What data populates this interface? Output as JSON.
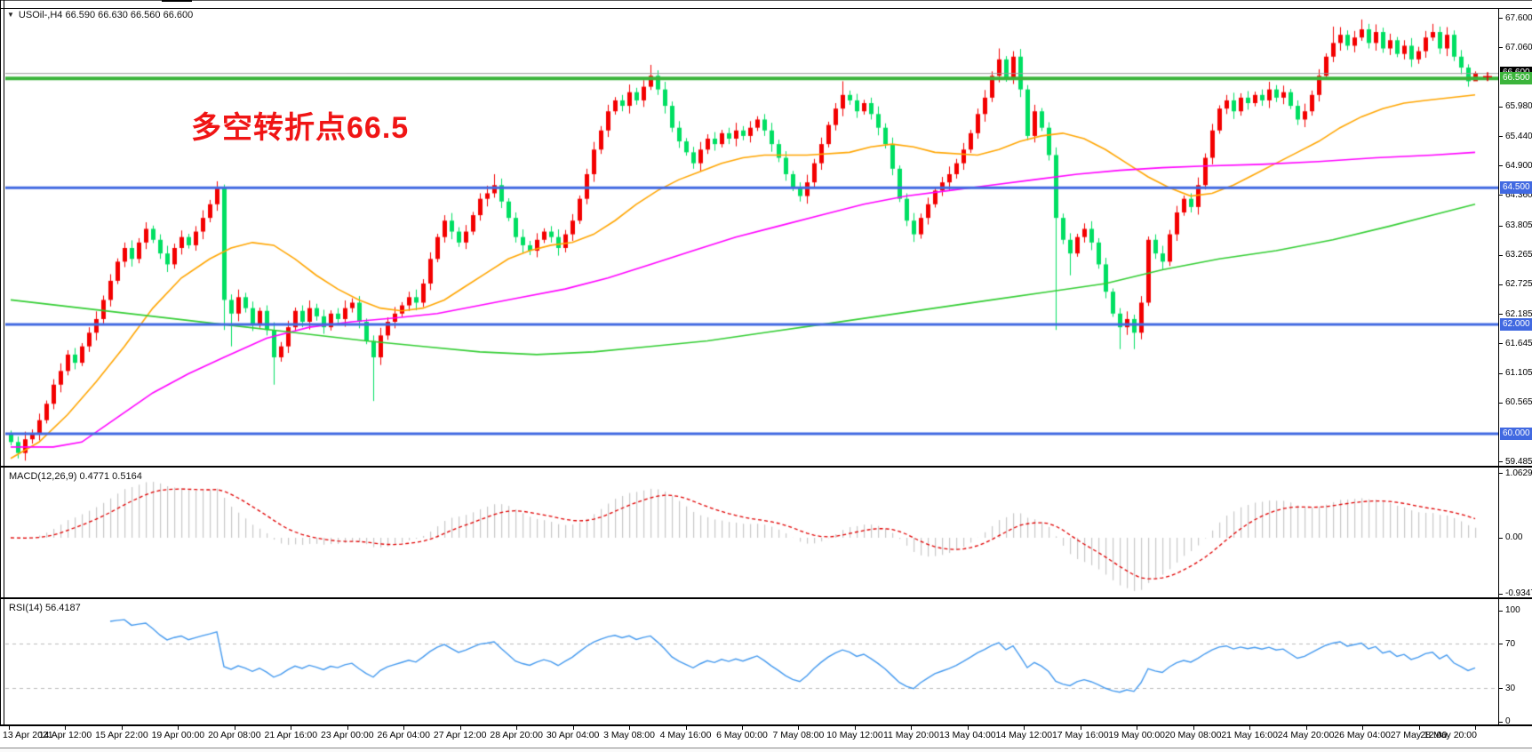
{
  "window": {
    "symbol_line": "USOil-,H4  66.590 66.630 66.560 66.600",
    "dropdown_icon": "▼"
  },
  "annotation": {
    "text": "多空转折点66.5",
    "color": "#f01515"
  },
  "panes": {
    "macd_label": "MACD(12,26,9) 0.4771 0.5164",
    "rsi_label": "RSI(14) 56.4187"
  },
  "chart_data": {
    "type": "candlestick",
    "symbol": "USOil-",
    "timeframe": "H4",
    "current_ohlc": {
      "open": 66.59,
      "high": 66.63,
      "low": 66.56,
      "close": 66.6
    },
    "price_axis": {
      "min": 59.4,
      "max": 67.79,
      "ticks": [
        67.6,
        67.06,
        65.98,
        65.44,
        64.9,
        64.36,
        63.805,
        63.265,
        62.725,
        62.185,
        61.645,
        61.105,
        60.565,
        59.485
      ]
    },
    "hlines": [
      {
        "price": 66.5,
        "label": "66.500",
        "color": "#3bb43b",
        "width": 4
      },
      {
        "price": 64.5,
        "label": "64.500",
        "color": "#4169e1",
        "width": 3
      },
      {
        "price": 62.0,
        "label": "62.000",
        "color": "#4169e1",
        "width": 3
      },
      {
        "price": 60.0,
        "label": "60.000",
        "color": "#4169e1",
        "width": 3
      }
    ],
    "current_price": {
      "value": 66.6,
      "label": "66.600",
      "line_color": "#9a9a9a",
      "box_color": "#000000",
      "marker_color": "#e00000"
    },
    "candles": {
      "up_color": "#f30000",
      "down_color": "#00df62",
      "first_open": 60.0,
      "closes": [
        59.85,
        59.65,
        59.9,
        60.0,
        60.25,
        60.55,
        60.9,
        61.15,
        61.45,
        61.3,
        61.6,
        61.85,
        62.1,
        62.45,
        62.8,
        63.15,
        63.4,
        63.2,
        63.5,
        63.75,
        63.55,
        63.3,
        63.1,
        63.4,
        63.6,
        63.45,
        63.7,
        63.95,
        64.2,
        64.5,
        62.45,
        62.2,
        62.5,
        62.3,
        62.0,
        62.25,
        61.9,
        61.4,
        61.6,
        61.95,
        62.25,
        62.05,
        62.3,
        62.15,
        61.95,
        62.2,
        62.1,
        62.3,
        62.4,
        62.05,
        61.7,
        61.4,
        61.8,
        62.05,
        62.2,
        62.35,
        62.5,
        62.4,
        62.75,
        63.2,
        63.6,
        63.9,
        63.7,
        63.5,
        63.7,
        64.0,
        64.3,
        64.4,
        64.55,
        64.25,
        63.95,
        63.6,
        63.45,
        63.35,
        63.55,
        63.7,
        63.6,
        63.4,
        63.65,
        63.9,
        64.3,
        64.75,
        65.2,
        65.55,
        65.9,
        66.1,
        66.0,
        66.25,
        66.1,
        66.35,
        66.55,
        66.3,
        66.0,
        65.6,
        65.35,
        65.15,
        64.95,
        65.2,
        65.4,
        65.3,
        65.5,
        65.4,
        65.55,
        65.45,
        65.6,
        65.75,
        65.55,
        65.3,
        65.05,
        64.75,
        64.5,
        64.35,
        64.6,
        64.95,
        65.3,
        65.65,
        65.95,
        66.2,
        66.1,
        65.9,
        66.05,
        65.85,
        65.6,
        65.3,
        64.85,
        64.3,
        63.9,
        63.65,
        63.95,
        64.2,
        64.45,
        64.6,
        64.75,
        64.95,
        65.2,
        65.5,
        65.85,
        66.15,
        66.55,
        66.85,
        66.5,
        66.9,
        66.3,
        65.45,
        65.9,
        65.6,
        65.1,
        63.95,
        63.55,
        63.3,
        63.6,
        63.75,
        63.5,
        63.1,
        62.6,
        62.2,
        61.95,
        62.1,
        61.85,
        62.4,
        63.55,
        63.3,
        63.15,
        63.65,
        64.05,
        64.3,
        64.15,
        64.55,
        65.05,
        65.55,
        65.95,
        66.1,
        65.9,
        66.15,
        66.05,
        66.2,
        66.1,
        66.3,
        66.15,
        66.25,
        66.0,
        65.75,
        65.9,
        66.2,
        66.55,
        66.9,
        67.15,
        67.3,
        67.1,
        67.25,
        67.4,
        67.15,
        67.35,
        67.05,
        67.2,
        66.95,
        67.1,
        66.85,
        67.0,
        67.25,
        67.35,
        67.05,
        67.3,
        66.9,
        66.7,
        66.45,
        66.6
      ],
      "wick_overrides": {
        "30": {
          "low": 61.9
        },
        "31": {
          "low": 61.6
        },
        "37": {
          "low": 60.9
        },
        "51": {
          "low": 60.6
        },
        "68": {
          "high": 64.75
        },
        "90": {
          "high": 66.75
        },
        "117": {
          "high": 66.45
        },
        "139": {
          "high": 67.05
        },
        "141": {
          "high": 67.0
        },
        "147": {
          "low": 61.9
        },
        "149": {
          "low": 62.9
        },
        "156": {
          "low": 61.55
        },
        "158": {
          "low": 61.55
        },
        "186": {
          "high": 67.45
        },
        "190": {
          "high": 67.58
        },
        "200": {
          "high": 67.5
        },
        "205": {
          "low": 66.35
        },
        "206": {
          "high": 66.63,
          "low": 66.56
        }
      }
    },
    "moving_averages": [
      {
        "name": "ma-orange",
        "color": "#ffa500",
        "points": [
          [
            0,
            59.55
          ],
          [
            4,
            59.85
          ],
          [
            8,
            60.35
          ],
          [
            12,
            60.95
          ],
          [
            16,
            61.6
          ],
          [
            20,
            62.3
          ],
          [
            24,
            62.85
          ],
          [
            28,
            63.2
          ],
          [
            31,
            63.4
          ],
          [
            34,
            63.5
          ],
          [
            37,
            63.45
          ],
          [
            40,
            63.2
          ],
          [
            43,
            62.9
          ],
          [
            46,
            62.65
          ],
          [
            49,
            62.45
          ],
          [
            52,
            62.3
          ],
          [
            55,
            62.25
          ],
          [
            58,
            62.3
          ],
          [
            61,
            62.45
          ],
          [
            64,
            62.7
          ],
          [
            67,
            62.95
          ],
          [
            70,
            63.2
          ],
          [
            73,
            63.35
          ],
          [
            76,
            63.45
          ],
          [
            79,
            63.5
          ],
          [
            82,
            63.65
          ],
          [
            85,
            63.9
          ],
          [
            88,
            64.2
          ],
          [
            91,
            64.45
          ],
          [
            94,
            64.65
          ],
          [
            97,
            64.8
          ],
          [
            100,
            64.95
          ],
          [
            103,
            65.05
          ],
          [
            106,
            65.1
          ],
          [
            112,
            65.1
          ],
          [
            118,
            65.15
          ],
          [
            121,
            65.25
          ],
          [
            124,
            65.3
          ],
          [
            127,
            65.25
          ],
          [
            130,
            65.15
          ],
          [
            136,
            65.1
          ],
          [
            139,
            65.2
          ],
          [
            142,
            65.35
          ],
          [
            145,
            65.45
          ],
          [
            148,
            65.5
          ],
          [
            151,
            65.4
          ],
          [
            154,
            65.2
          ],
          [
            157,
            64.95
          ],
          [
            160,
            64.7
          ],
          [
            163,
            64.5
          ],
          [
            166,
            64.35
          ],
          [
            169,
            64.4
          ],
          [
            172,
            64.55
          ],
          [
            175,
            64.75
          ],
          [
            178,
            64.95
          ],
          [
            181,
            65.15
          ],
          [
            184,
            65.35
          ],
          [
            187,
            65.6
          ],
          [
            190,
            65.8
          ],
          [
            193,
            65.95
          ],
          [
            196,
            66.05
          ],
          [
            199,
            66.1
          ],
          [
            206,
            66.2
          ]
        ]
      },
      {
        "name": "ma-magenta",
        "color": "#ff00ff",
        "points": [
          [
            0,
            59.76
          ],
          [
            6,
            59.76
          ],
          [
            10,
            59.85
          ],
          [
            15,
            60.3
          ],
          [
            20,
            60.75
          ],
          [
            25,
            61.1
          ],
          [
            30,
            61.4
          ],
          [
            36,
            61.75
          ],
          [
            42,
            61.95
          ],
          [
            48,
            62.05
          ],
          [
            54,
            62.12
          ],
          [
            60,
            62.2
          ],
          [
            66,
            62.35
          ],
          [
            72,
            62.5
          ],
          [
            78,
            62.65
          ],
          [
            84,
            62.85
          ],
          [
            90,
            63.1
          ],
          [
            96,
            63.35
          ],
          [
            102,
            63.6
          ],
          [
            108,
            63.8
          ],
          [
            114,
            64.0
          ],
          [
            120,
            64.2
          ],
          [
            126,
            64.35
          ],
          [
            132,
            64.45
          ],
          [
            138,
            64.55
          ],
          [
            144,
            64.65
          ],
          [
            150,
            64.75
          ],
          [
            156,
            64.82
          ],
          [
            162,
            64.87
          ],
          [
            168,
            64.9
          ],
          [
            176,
            64.93
          ],
          [
            184,
            64.98
          ],
          [
            192,
            65.05
          ],
          [
            200,
            65.1
          ],
          [
            206,
            65.15
          ]
        ]
      },
      {
        "name": "ma-green",
        "color": "#32cd32",
        "points": [
          [
            0,
            62.45
          ],
          [
            10,
            62.3
          ],
          [
            20,
            62.15
          ],
          [
            30,
            62.0
          ],
          [
            40,
            61.85
          ],
          [
            50,
            61.7
          ],
          [
            58,
            61.6
          ],
          [
            66,
            61.5
          ],
          [
            74,
            61.45
          ],
          [
            82,
            61.5
          ],
          [
            90,
            61.6
          ],
          [
            98,
            61.7
          ],
          [
            106,
            61.85
          ],
          [
            114,
            62.0
          ],
          [
            122,
            62.15
          ],
          [
            130,
            62.3
          ],
          [
            138,
            62.45
          ],
          [
            146,
            62.6
          ],
          [
            154,
            62.75
          ],
          [
            162,
            63.0
          ],
          [
            170,
            63.2
          ],
          [
            178,
            63.35
          ],
          [
            186,
            63.55
          ],
          [
            194,
            63.8
          ],
          [
            200,
            64.0
          ],
          [
            206,
            64.2
          ]
        ]
      }
    ],
    "macd": {
      "label": "MACD(12,26,9)",
      "main_value": "0.4771",
      "signal_value": "0.5164",
      "params": [
        12,
        26,
        9
      ],
      "axis_ticks": [
        "1.0629",
        "0.00",
        "-0.9347"
      ],
      "axis_tick_values": [
        1.0629,
        0.0,
        -0.9347
      ],
      "histogram_color": "#c8c8c8",
      "signal_color": "#e00000"
    },
    "rsi": {
      "label": "RSI(14)",
      "value": "56.4187",
      "period": 14,
      "axis_ticks": [
        "100",
        "70",
        "30",
        "0"
      ],
      "axis_tick_values": [
        100,
        70,
        30,
        0
      ],
      "levels": [
        70,
        30
      ],
      "color": "#4499ee",
      "level_color": "#bbbbbb"
    },
    "time_axis": {
      "labels": [
        "13 Apr 2021",
        "14 Apr 12:00",
        "15 Apr 22:00",
        "19 Apr 00:00",
        "20 Apr 08:00",
        "21 Apr 16:00",
        "23 Apr 00:00",
        "26 Apr 04:00",
        "27 Apr 12:00",
        "28 Apr 20:00",
        "30 Apr 04:00",
        "3 May 08:00",
        "4 May 16:00",
        "6 May 00:00",
        "7 May 08:00",
        "10 May 12:00",
        "11 May 20:00",
        "13 May 04:00",
        "14 May 12:00",
        "17 May 16:00",
        "19 May 00:00",
        "20 May 08:00",
        "21 May 16:00",
        "24 May 20:00",
        "26 May 04:00",
        "27 May 12:00",
        "28 May 20:00"
      ]
    }
  }
}
